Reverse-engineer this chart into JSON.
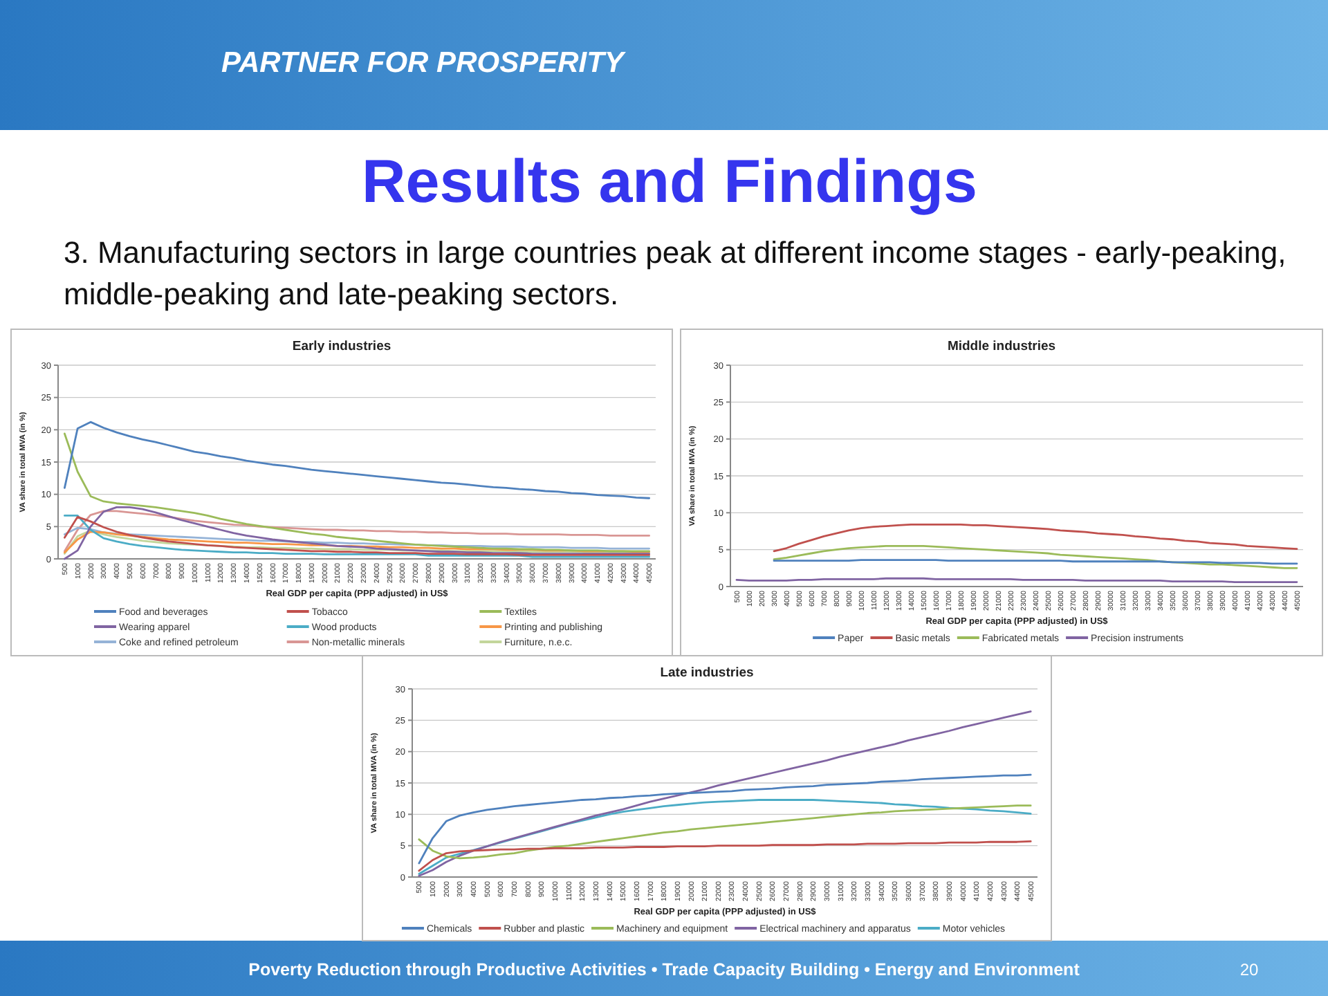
{
  "chart_data": [
    {
      "type": "line",
      "title": "Early industries",
      "xlabel": "Real GDP per capita (PPP adjusted) in US$",
      "ylabel": "VA share in total MVA (in %)",
      "ylim": [
        0,
        30
      ],
      "yticks": [
        0,
        5,
        10,
        15,
        20,
        25,
        30
      ],
      "grid": "y",
      "legend": "bottom",
      "categories": [
        "500",
        "1000",
        "2000",
        "3000",
        "4000",
        "5000",
        "6000",
        "7000",
        "8000",
        "9000",
        "10000",
        "11000",
        "12000",
        "13000",
        "14000",
        "15000",
        "16000",
        "17000",
        "18000",
        "19000",
        "20000",
        "21000",
        "22000",
        "23000",
        "24000",
        "25000",
        "26000",
        "27000",
        "28000",
        "29000",
        "30000",
        "31000",
        "32000",
        "33000",
        "34000",
        "35000",
        "36000",
        "37000",
        "38000",
        "39000",
        "40000",
        "41000",
        "42000",
        "43000",
        "44000",
        "45000"
      ],
      "annotations": [
        "PARTNER FOR PROSPERITY",
        "Results and Findings",
        "3. Manufacturing sectors in large countries peak at different income stages - early-peaking, middle-peaking and late-peaking sectors.",
        "Poverty Reduction through Productive Activities  •  Trade Capacity Building  •  Energy and Environment",
        "20"
      ],
      "series": [
        {
          "name": "Food and beverages",
          "color": "#4f81bd",
          "values": [
            11,
            20.2,
            21.2,
            20.3,
            19.6,
            19.0,
            18.5,
            18.1,
            17.6,
            17.1,
            16.6,
            16.3,
            15.9,
            15.6,
            15.2,
            14.9,
            14.6,
            14.4,
            14.1,
            13.8,
            13.6,
            13.4,
            13.2,
            13.0,
            12.8,
            12.6,
            12.4,
            12.2,
            12.0,
            11.8,
            11.7,
            11.5,
            11.3,
            11.1,
            11.0,
            10.8,
            10.7,
            10.5,
            10.4,
            10.2,
            10.1,
            9.9,
            9.8,
            9.7,
            9.5,
            9.4
          ]
        },
        {
          "name": "Tobacco",
          "color": "#c0504d",
          "values": [
            3.3,
            6.5,
            5.8,
            4.9,
            4.2,
            3.7,
            3.3,
            3.0,
            2.7,
            2.5,
            2.3,
            2.1,
            2.0,
            1.8,
            1.7,
            1.6,
            1.5,
            1.4,
            1.3,
            1.2,
            1.2,
            1.1,
            1.1,
            1.0,
            1.0,
            0.9,
            0.9,
            0.9,
            0.8,
            0.8,
            0.8,
            0.7,
            0.7,
            0.7,
            0.7,
            0.6,
            0.6,
            0.6,
            0.6,
            0.6,
            0.6,
            0.6,
            0.6,
            0.6,
            0.6,
            0.6
          ]
        },
        {
          "name": "Textiles",
          "color": "#9bbb59",
          "values": [
            19.4,
            13.5,
            9.7,
            8.9,
            8.6,
            8.4,
            8.2,
            8.0,
            7.7,
            7.4,
            7.1,
            6.7,
            6.2,
            5.8,
            5.4,
            5.1,
            4.8,
            4.5,
            4.2,
            3.9,
            3.7,
            3.4,
            3.2,
            3.0,
            2.8,
            2.6,
            2.4,
            2.2,
            2.1,
            2.0,
            1.9,
            1.8,
            1.7,
            1.6,
            1.6,
            1.5,
            1.5,
            1.4,
            1.4,
            1.3,
            1.3,
            1.3,
            1.2,
            1.2,
            1.2,
            1.2
          ]
        },
        {
          "name": "Wearing apparel",
          "color": "#8064a2",
          "values": [
            0,
            1.3,
            5.0,
            7.3,
            8.0,
            8.0,
            7.7,
            7.2,
            6.6,
            6.0,
            5.5,
            5.0,
            4.5,
            4.0,
            3.6,
            3.3,
            3.0,
            2.8,
            2.6,
            2.4,
            2.2,
            2.0,
            1.9,
            1.8,
            1.6,
            1.5,
            1.4,
            1.3,
            1.2,
            1.1,
            1.1,
            1.0,
            1.0,
            0.9,
            0.9,
            0.9,
            0.8,
            0.8,
            0.8,
            0.8,
            0.8,
            0.8,
            0.8,
            0.8,
            0.8,
            0.8
          ]
        },
        {
          "name": "Wood products",
          "color": "#4bacc6",
          "values": [
            6.7,
            6.7,
            4.5,
            3.2,
            2.7,
            2.3,
            2.0,
            1.8,
            1.6,
            1.4,
            1.3,
            1.2,
            1.1,
            1.0,
            1.0,
            0.9,
            0.9,
            0.8,
            0.8,
            0.8,
            0.7,
            0.7,
            0.7,
            0.7,
            0.7,
            0.7,
            0.7,
            0.7,
            0.5,
            0.5,
            0.5,
            0.5,
            0.5,
            0.5,
            0.5,
            0.5,
            0.3,
            0.3,
            0.3,
            0.3,
            0.3,
            0.3,
            0.3,
            0.3,
            0.3,
            0.3
          ]
        },
        {
          "name": "Printing and publishing",
          "color": "#f79646",
          "values": [
            1.0,
            3.0,
            4.2,
            4.1,
            3.8,
            3.6,
            3.4,
            3.2,
            3.0,
            2.9,
            2.8,
            2.7,
            2.6,
            2.5,
            2.5,
            2.4,
            2.3,
            2.3,
            2.2,
            2.1,
            2.1,
            2.0,
            2.0,
            1.9,
            1.9,
            1.8,
            1.8,
            1.7,
            1.7,
            1.6,
            1.6,
            1.5,
            1.5,
            1.5,
            1.4,
            1.4,
            1.4,
            1.3,
            1.3,
            1.3,
            1.2,
            1.2,
            1.2,
            1.2,
            1.1,
            1.1
          ]
        },
        {
          "name": "Coke and refined petroleum",
          "color": "#95b3d7",
          "values": [
            3.8,
            4.8,
            4.6,
            4.1,
            3.9,
            3.8,
            3.7,
            3.6,
            3.5,
            3.4,
            3.3,
            3.2,
            3.1,
            3.0,
            2.9,
            2.8,
            2.8,
            2.7,
            2.6,
            2.6,
            2.5,
            2.5,
            2.4,
            2.4,
            2.3,
            2.3,
            2.2,
            2.2,
            2.1,
            2.1,
            2.0,
            2.0,
            2.0,
            1.9,
            1.9,
            1.9,
            1.8,
            1.8,
            1.8,
            1.7,
            1.7,
            1.7,
            1.6,
            1.6,
            1.6,
            1.6
          ]
        },
        {
          "name": "Non-metallic minerals",
          "color": "#d99694",
          "values": [
            1.2,
            4.5,
            6.8,
            7.4,
            7.4,
            7.2,
            7.0,
            6.8,
            6.5,
            6.2,
            5.9,
            5.7,
            5.5,
            5.3,
            5.2,
            5.0,
            4.9,
            4.8,
            4.7,
            4.6,
            4.5,
            4.5,
            4.4,
            4.4,
            4.3,
            4.3,
            4.2,
            4.2,
            4.1,
            4.1,
            4.0,
            4.0,
            3.9,
            3.9,
            3.9,
            3.8,
            3.8,
            3.8,
            3.8,
            3.7,
            3.7,
            3.7,
            3.6,
            3.6,
            3.6,
            3.6
          ]
        },
        {
          "name": "Furniture, n.e.c.",
          "color": "#c3d69b",
          "values": [
            0.8,
            3.5,
            4.4,
            3.8,
            3.4,
            3.1,
            2.8,
            2.6,
            2.4,
            2.3,
            2.2,
            2.1,
            2.0,
            1.9,
            1.8,
            1.8,
            1.7,
            1.7,
            1.6,
            1.6,
            1.5,
            1.5,
            1.5,
            1.4,
            1.4,
            1.4,
            1.3,
            1.3,
            1.3,
            1.3,
            1.2,
            1.2,
            1.2,
            1.2,
            1.2,
            1.1,
            1.1,
            1.1,
            1.1,
            1.1,
            1.0,
            1.0,
            1.0,
            1.0,
            1.0,
            1.0
          ]
        }
      ]
    },
    {
      "type": "line",
      "title": "Middle industries",
      "xlabel": "Real GDP per capita (PPP adjusted) in US$",
      "ylabel": "VA share in total MVA (in %)",
      "ylim": [
        0,
        30
      ],
      "yticks": [
        0,
        5,
        10,
        15,
        20,
        25,
        30
      ],
      "grid": "y",
      "legend": "bottom",
      "categories": [
        "500",
        "1000",
        "2000",
        "3000",
        "4000",
        "5000",
        "6000",
        "7000",
        "8000",
        "9000",
        "10000",
        "11000",
        "12000",
        "13000",
        "14000",
        "15000",
        "16000",
        "17000",
        "18000",
        "19000",
        "20000",
        "21000",
        "22000",
        "23000",
        "24000",
        "25000",
        "26000",
        "27000",
        "28000",
        "29000",
        "30000",
        "31000",
        "32000",
        "33000",
        "34000",
        "35000",
        "36000",
        "37000",
        "38000",
        "39000",
        "40000",
        "41000",
        "42000",
        "43000",
        "44000",
        "45000"
      ],
      "series": [
        {
          "name": "Paper",
          "color": "#4f81bd",
          "values": [
            null,
            null,
            null,
            3.5,
            3.5,
            3.5,
            3.5,
            3.5,
            3.5,
            3.5,
            3.6,
            3.6,
            3.6,
            3.6,
            3.6,
            3.6,
            3.6,
            3.5,
            3.5,
            3.5,
            3.5,
            3.5,
            3.5,
            3.5,
            3.5,
            3.5,
            3.5,
            3.4,
            3.4,
            3.4,
            3.4,
            3.4,
            3.4,
            3.4,
            3.4,
            3.3,
            3.3,
            3.3,
            3.3,
            3.2,
            3.2,
            3.2,
            3.2,
            3.1,
            3.1,
            3.1
          ]
        },
        {
          "name": "Basic metals",
          "color": "#c0504d",
          "values": [
            null,
            null,
            null,
            4.8,
            5.2,
            5.8,
            6.3,
            6.8,
            7.2,
            7.6,
            7.9,
            8.1,
            8.2,
            8.3,
            8.4,
            8.4,
            8.4,
            8.4,
            8.4,
            8.3,
            8.3,
            8.2,
            8.1,
            8.0,
            7.9,
            7.8,
            7.6,
            7.5,
            7.4,
            7.2,
            7.1,
            7.0,
            6.8,
            6.7,
            6.5,
            6.4,
            6.2,
            6.1,
            5.9,
            5.8,
            5.7,
            5.5,
            5.4,
            5.3,
            5.2,
            5.1
          ]
        },
        {
          "name": "Fabricated metals",
          "color": "#9bbb59",
          "values": [
            null,
            null,
            null,
            3.7,
            3.9,
            4.2,
            4.5,
            4.8,
            5.0,
            5.2,
            5.3,
            5.4,
            5.5,
            5.5,
            5.5,
            5.5,
            5.4,
            5.3,
            5.2,
            5.1,
            5.0,
            4.9,
            4.8,
            4.7,
            4.6,
            4.5,
            4.3,
            4.2,
            4.1,
            4.0,
            3.9,
            3.8,
            3.7,
            3.6,
            3.4,
            3.3,
            3.2,
            3.1,
            3.0,
            3.0,
            2.9,
            2.8,
            2.7,
            2.6,
            2.5,
            2.5
          ]
        },
        {
          "name": "Precision instruments",
          "color": "#8064a2",
          "values": [
            0.9,
            0.8,
            0.8,
            0.8,
            0.8,
            0.9,
            0.9,
            1.0,
            1.0,
            1.0,
            1.0,
            1.0,
            1.1,
            1.1,
            1.1,
            1.1,
            1.0,
            1.0,
            1.0,
            1.0,
            1.0,
            1.0,
            1.0,
            0.9,
            0.9,
            0.9,
            0.9,
            0.9,
            0.8,
            0.8,
            0.8,
            0.8,
            0.8,
            0.8,
            0.8,
            0.7,
            0.7,
            0.7,
            0.7,
            0.7,
            0.6,
            0.6,
            0.6,
            0.6,
            0.6,
            0.6
          ]
        }
      ]
    },
    {
      "type": "line",
      "title": "Late industries",
      "xlabel": "Real GDP per capita (PPP adjusted) in US$",
      "ylabel": "VA share in total MVA (in %)",
      "ylim": [
        0,
        30
      ],
      "yticks": [
        0,
        5,
        10,
        15,
        20,
        25,
        30
      ],
      "grid": "y",
      "legend": "bottom",
      "categories": [
        "500",
        "1000",
        "2000",
        "3000",
        "4000",
        "5000",
        "6000",
        "7000",
        "8000",
        "9000",
        "10000",
        "11000",
        "12000",
        "13000",
        "14000",
        "15000",
        "16000",
        "17000",
        "18000",
        "19000",
        "20000",
        "21000",
        "22000",
        "23000",
        "24000",
        "25000",
        "26000",
        "27000",
        "28000",
        "29000",
        "30000",
        "31000",
        "32000",
        "33000",
        "34000",
        "35000",
        "36000",
        "37000",
        "38000",
        "39000",
        "40000",
        "41000",
        "42000",
        "43000",
        "44000",
        "45000"
      ],
      "series": [
        {
          "name": "Chemicals",
          "color": "#4f81bd",
          "values": [
            2.2,
            6.2,
            8.9,
            9.8,
            10.3,
            10.7,
            11.0,
            11.3,
            11.5,
            11.7,
            11.9,
            12.1,
            12.3,
            12.4,
            12.6,
            12.7,
            12.9,
            13.0,
            13.2,
            13.3,
            13.4,
            13.5,
            13.6,
            13.7,
            13.9,
            14.0,
            14.1,
            14.3,
            14.4,
            14.5,
            14.7,
            14.8,
            14.9,
            15.0,
            15.2,
            15.3,
            15.4,
            15.6,
            15.7,
            15.8,
            15.9,
            16.0,
            16.1,
            16.2,
            16.2,
            16.3
          ]
        },
        {
          "name": "Rubber and plastic",
          "color": "#c0504d",
          "values": [
            1.0,
            2.7,
            3.8,
            4.1,
            4.2,
            4.3,
            4.4,
            4.4,
            4.5,
            4.5,
            4.6,
            4.6,
            4.6,
            4.7,
            4.7,
            4.7,
            4.8,
            4.8,
            4.8,
            4.9,
            4.9,
            4.9,
            5.0,
            5.0,
            5.0,
            5.0,
            5.1,
            5.1,
            5.1,
            5.1,
            5.2,
            5.2,
            5.2,
            5.3,
            5.3,
            5.3,
            5.4,
            5.4,
            5.4,
            5.5,
            5.5,
            5.5,
            5.6,
            5.6,
            5.6,
            5.7
          ]
        },
        {
          "name": "Machinery and equipment",
          "color": "#9bbb59",
          "values": [
            6.0,
            4.2,
            3.3,
            3.0,
            3.1,
            3.3,
            3.6,
            3.8,
            4.2,
            4.5,
            4.8,
            5.0,
            5.3,
            5.6,
            5.9,
            6.2,
            6.5,
            6.8,
            7.1,
            7.3,
            7.6,
            7.8,
            8.0,
            8.2,
            8.4,
            8.6,
            8.8,
            9.0,
            9.2,
            9.4,
            9.6,
            9.8,
            10.0,
            10.2,
            10.3,
            10.5,
            10.6,
            10.7,
            10.8,
            10.9,
            11.0,
            11.1,
            11.2,
            11.3,
            11.4,
            11.4
          ]
        },
        {
          "name": "Electrical machinery and apparatus",
          "color": "#8064a2",
          "values": [
            0.2,
            1.1,
            2.4,
            3.4,
            4.2,
            4.9,
            5.6,
            6.2,
            6.8,
            7.4,
            8.0,
            8.6,
            9.2,
            9.8,
            10.3,
            10.8,
            11.4,
            12.0,
            12.5,
            13.0,
            13.5,
            14.0,
            14.6,
            15.1,
            15.6,
            16.1,
            16.6,
            17.1,
            17.6,
            18.1,
            18.6,
            19.2,
            19.7,
            20.2,
            20.7,
            21.2,
            21.8,
            22.3,
            22.8,
            23.3,
            23.9,
            24.4,
            24.9,
            25.4,
            25.9,
            26.4
          ]
        },
        {
          "name": "Motor vehicles",
          "color": "#4bacc6",
          "values": [
            0.5,
            1.8,
            3.1,
            3.7,
            4.3,
            4.9,
            5.5,
            6.1,
            6.7,
            7.3,
            7.9,
            8.5,
            9.0,
            9.5,
            10.0,
            10.4,
            10.7,
            11.0,
            11.3,
            11.5,
            11.7,
            11.9,
            12.0,
            12.1,
            12.2,
            12.3,
            12.3,
            12.3,
            12.3,
            12.3,
            12.2,
            12.1,
            12.0,
            11.9,
            11.8,
            11.6,
            11.5,
            11.3,
            11.2,
            11.0,
            10.9,
            10.8,
            10.6,
            10.5,
            10.3,
            10.1
          ]
        }
      ]
    }
  ]
}
